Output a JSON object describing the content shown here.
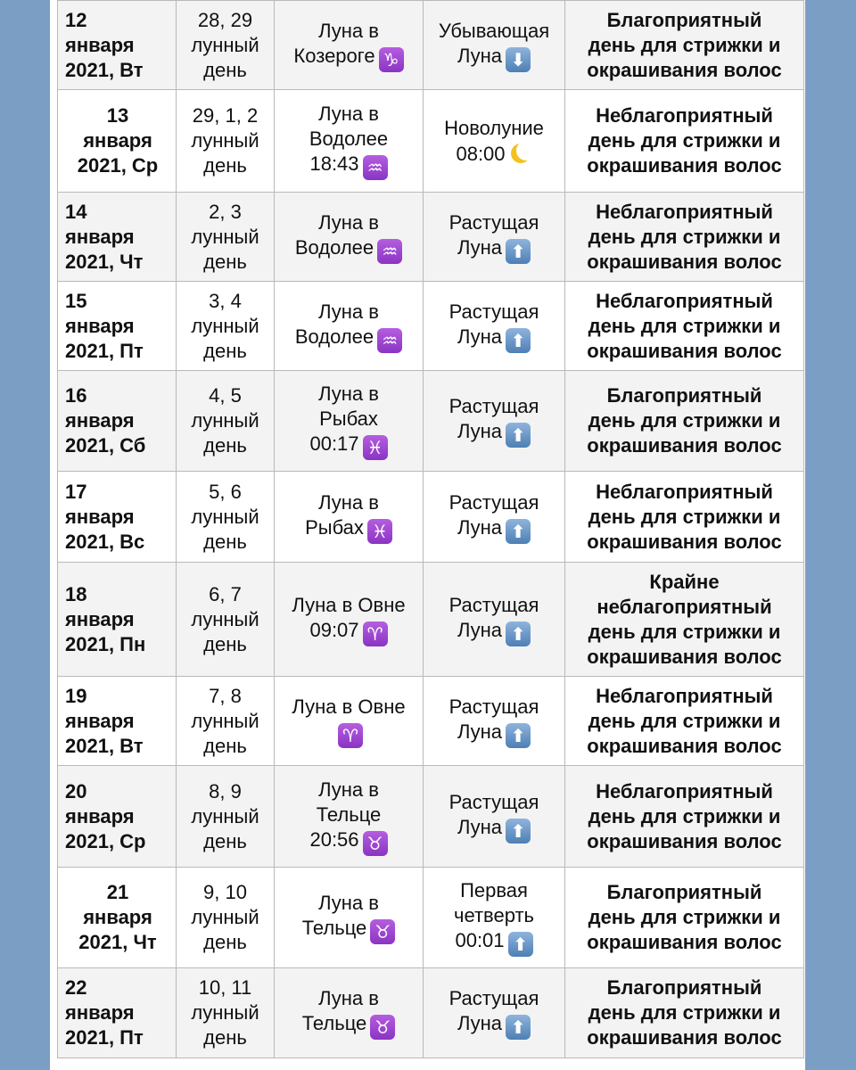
{
  "colors": {
    "background": "#7b9ec4",
    "zodiac_badge": "#9b45d0",
    "arrow_badge": "#5f8fc4",
    "moon": "#f3c21f"
  },
  "rows": [
    {
      "date": [
        "12",
        "января",
        "2021, Вт"
      ],
      "lunar": [
        "28, 29",
        "лунный",
        "день"
      ],
      "moon": [
        "Луна в",
        "Козероге"
      ],
      "sign": "♑",
      "sign_icon": "capricorn-icon",
      "phase": [
        "Убывающая",
        "Луна"
      ],
      "phase_icon": "arrow-down-icon",
      "phase_glyph": "⬇",
      "verdict": [
        "Благоприятный",
        "день для стрижки и",
        "окрашивания волос"
      ]
    },
    {
      "date": [
        "13",
        "января",
        "2021, Ср"
      ],
      "lunar": [
        "29, 1, 2",
        "лунный",
        "день"
      ],
      "moon": [
        "Луна в",
        "Водолее",
        "18:43"
      ],
      "sign": "♒",
      "sign_icon": "aquarius-icon",
      "phase": [
        "Новолуние",
        "08:00"
      ],
      "phase_icon": "crescent-moon-icon",
      "phase_glyph": "",
      "verdict": [
        "Неблагоприятный",
        "день для стрижки и",
        "окрашивания волос"
      ]
    },
    {
      "date": [
        "14",
        "января",
        "2021, Чт"
      ],
      "lunar": [
        "2, 3",
        "лунный",
        "день"
      ],
      "moon": [
        "Луна в",
        "Водолее"
      ],
      "sign": "♒",
      "sign_icon": "aquarius-icon",
      "phase": [
        "Растущая",
        "Луна"
      ],
      "phase_icon": "arrow-up-icon",
      "phase_glyph": "⬆",
      "verdict": [
        "Неблагоприятный",
        "день для стрижки и",
        "окрашивания волос"
      ]
    },
    {
      "date": [
        "15",
        "января",
        "2021, Пт"
      ],
      "lunar": [
        "3, 4",
        "лунный",
        "день"
      ],
      "moon": [
        "Луна в",
        "Водолее"
      ],
      "sign": "♒",
      "sign_icon": "aquarius-icon",
      "phase": [
        "Растущая",
        "Луна"
      ],
      "phase_icon": "arrow-up-icon",
      "phase_glyph": "⬆",
      "verdict": [
        "Неблагоприятный",
        "день для стрижки и",
        "окрашивания волос"
      ]
    },
    {
      "date": [
        "16",
        "января",
        "2021, Сб"
      ],
      "lunar": [
        "4, 5",
        "лунный",
        "день"
      ],
      "moon": [
        "Луна в",
        "Рыбах",
        "00:17"
      ],
      "sign": "♓",
      "sign_icon": "pisces-icon",
      "phase": [
        "Растущая",
        "Луна"
      ],
      "phase_icon": "arrow-up-icon",
      "phase_glyph": "⬆",
      "verdict": [
        "Благоприятный",
        "день для стрижки и",
        "окрашивания волос"
      ]
    },
    {
      "date": [
        "17",
        "января",
        "2021, Вс"
      ],
      "lunar": [
        "5, 6",
        "лунный",
        "день"
      ],
      "moon": [
        "Луна в",
        "Рыбах"
      ],
      "sign": "♓",
      "sign_icon": "pisces-icon",
      "phase": [
        "Растущая",
        "Луна"
      ],
      "phase_icon": "arrow-up-icon",
      "phase_glyph": "⬆",
      "verdict": [
        "Неблагоприятный",
        "день для стрижки и",
        "окрашивания волос"
      ]
    },
    {
      "date": [
        "18",
        "января",
        "2021, Пн"
      ],
      "lunar": [
        "6, 7",
        "лунный",
        "день"
      ],
      "moon": [
        "Луна в Овне",
        "09:07"
      ],
      "sign": "♈",
      "sign_icon": "aries-icon",
      "phase": [
        "Растущая",
        "Луна"
      ],
      "phase_icon": "arrow-up-icon",
      "phase_glyph": "⬆",
      "verdict": [
        "Крайне",
        "неблагоприятный",
        "день для стрижки и",
        "окрашивания волос"
      ]
    },
    {
      "date": [
        "19",
        "января",
        "2021, Вт"
      ],
      "lunar": [
        "7, 8",
        "лунный",
        "день"
      ],
      "moon": [
        "Луна в Овне",
        ""
      ],
      "sign": "♈",
      "sign_icon": "aries-icon",
      "phase": [
        "Растущая",
        "Луна"
      ],
      "phase_icon": "arrow-up-icon",
      "phase_glyph": "⬆",
      "verdict": [
        "Неблагоприятный",
        "день для стрижки и",
        "окрашивания волос"
      ]
    },
    {
      "date": [
        "20",
        "января",
        "2021, Ср"
      ],
      "lunar": [
        "8, 9",
        "лунный",
        "день"
      ],
      "moon": [
        "Луна в",
        "Тельце",
        "20:56"
      ],
      "sign": "♉",
      "sign_icon": "taurus-icon",
      "phase": [
        "Растущая",
        "Луна"
      ],
      "phase_icon": "arrow-up-icon",
      "phase_glyph": "⬆",
      "verdict": [
        "Неблагоприятный",
        "день для стрижки и",
        "окрашивания волос"
      ]
    },
    {
      "date": [
        "21",
        "января",
        "2021, Чт"
      ],
      "lunar": [
        "9, 10",
        "лунный",
        "день"
      ],
      "moon": [
        "Луна в",
        "Тельце"
      ],
      "sign": "♉",
      "sign_icon": "taurus-icon",
      "phase": [
        "Первая",
        "четверть",
        "00:01"
      ],
      "phase_icon": "arrow-up-icon",
      "phase_glyph": "⬆",
      "verdict": [
        "Благоприятный",
        "день для стрижки и",
        "окрашивания волос"
      ]
    },
    {
      "date": [
        "22",
        "января",
        "2021, Пт"
      ],
      "lunar": [
        "10, 11",
        "лунный",
        "день"
      ],
      "moon": [
        "Луна в",
        "Тельце"
      ],
      "sign": "♉",
      "sign_icon": "taurus-icon",
      "phase": [
        "Растущая",
        "Луна"
      ],
      "phase_icon": "arrow-up-icon",
      "phase_glyph": "⬆",
      "verdict": [
        "Благоприятный",
        "день для стрижки и",
        "окрашивания волос"
      ]
    }
  ]
}
